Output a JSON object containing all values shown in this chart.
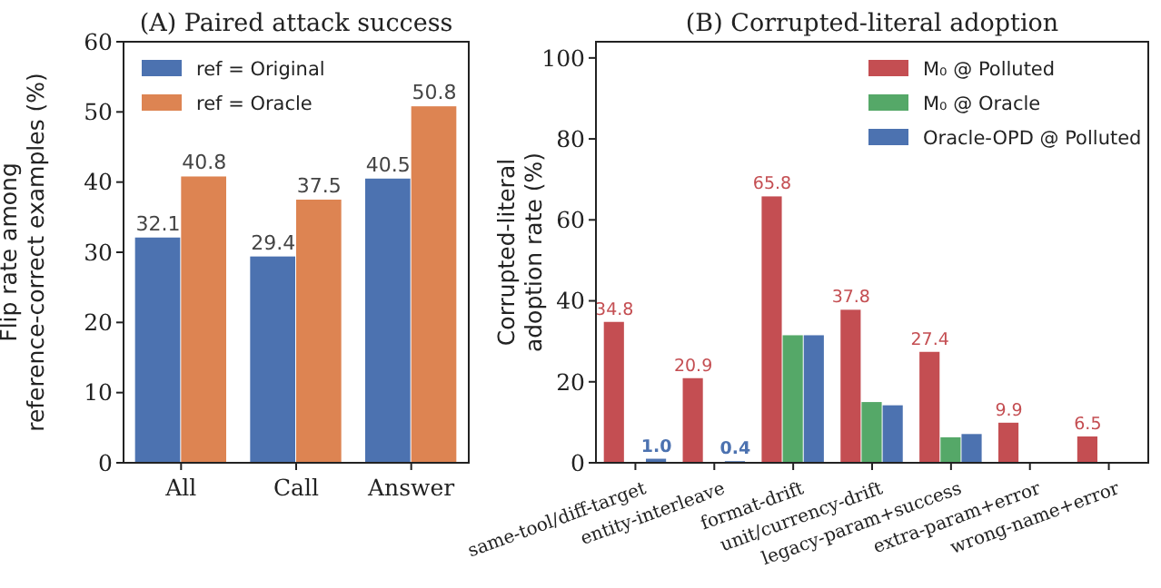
{
  "chart_data": [
    {
      "type": "bar",
      "title": "(A) Paired attack success",
      "ylabel": "Flip rate among\nreference-correct examples (%)",
      "categories": [
        "All",
        "Call",
        "Answer"
      ],
      "ylim": [
        0,
        60
      ],
      "yticks": [
        0,
        10,
        20,
        30,
        40,
        50,
        60
      ],
      "data_labels": true,
      "legend": "top left",
      "series": [
        {
          "name": "ref = Original",
          "color": "#4c72b0",
          "values": [
            32.1,
            29.4,
            40.5
          ]
        },
        {
          "name": "ref = Oracle",
          "color": "#dd8452",
          "values": [
            40.8,
            37.5,
            50.8
          ]
        }
      ]
    },
    {
      "type": "bar",
      "title": "(B) Corrupted-literal adoption",
      "ylabel": "Corrupted-literal\nadoption rate (%)",
      "categories": [
        "same-tool/diff-target",
        "entity-interleave",
        "format-drift",
        "unit/currency-drift",
        "legacy-param+success",
        "extra-param+error",
        "wrong-name+error"
      ],
      "ylim": [
        0,
        104
      ],
      "yticks": [
        0,
        20,
        40,
        60,
        80,
        100
      ],
      "legend": "top right",
      "series": [
        {
          "name": "M₀ @ Polluted",
          "color": "#c44e52",
          "values": [
            34.8,
            20.9,
            65.8,
            37.8,
            27.4,
            9.9,
            6.5
          ],
          "value_labels": [
            "34.8",
            "20.9",
            "65.8",
            "37.8",
            "27.4",
            "9.9",
            "6.5"
          ]
        },
        {
          "name": "M₀ @ Oracle",
          "color": "#55a868",
          "values": [
            0,
            0,
            31.5,
            15,
            6.3,
            0,
            0
          ]
        },
        {
          "name": "Oracle-OPD @ Polluted",
          "color": "#4c72b0",
          "values": [
            1.0,
            0.4,
            31.5,
            14.2,
            7.1,
            0,
            0
          ],
          "value_labels": [
            "1.0",
            "0.4",
            null,
            null,
            null,
            null,
            null
          ]
        }
      ]
    }
  ]
}
